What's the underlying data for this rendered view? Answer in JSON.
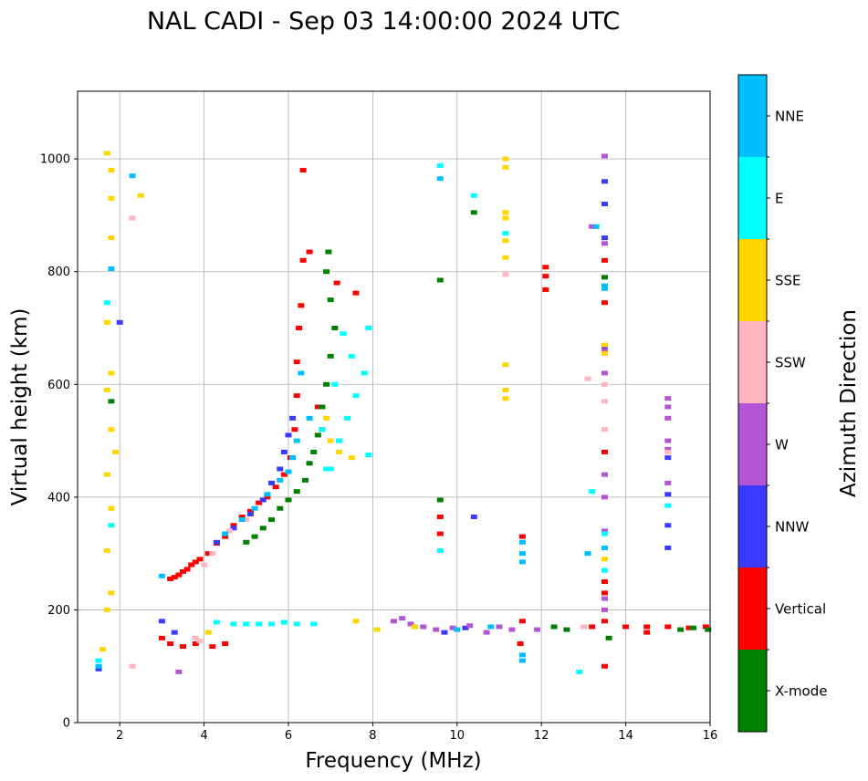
{
  "chart_data": {
    "type": "scatter",
    "title": "NAL CADI - Sep 03 14:00:00 2024 UTC",
    "xlabel": "Frequency (MHz)",
    "ylabel": "Virtual height (km)",
    "xlim": [
      1,
      16
    ],
    "ylim": [
      0,
      1120
    ],
    "xticks": [
      2,
      4,
      6,
      8,
      10,
      12,
      14,
      16
    ],
    "yticks": [
      0,
      200,
      400,
      600,
      800,
      1000
    ],
    "grid": true,
    "colorbar": {
      "label": "Azimuth Direction",
      "categories": [
        {
          "name": "X-mode",
          "color": "#008000"
        },
        {
          "name": "Vertical",
          "color": "#ff0000"
        },
        {
          "name": "NNW",
          "color": "#3a3aff"
        },
        {
          "name": "W",
          "color": "#b455d6"
        },
        {
          "name": "SSW",
          "color": "#ffb6c1"
        },
        {
          "name": "SSE",
          "color": "#ffd700"
        },
        {
          "name": "E",
          "color": "#00ffff"
        },
        {
          "name": "NNE",
          "color": "#00bfff"
        }
      ]
    },
    "series": [
      {
        "name": "Vertical",
        "points": [
          [
            3.2,
            255
          ],
          [
            3.3,
            258
          ],
          [
            3.4,
            262
          ],
          [
            3.5,
            268
          ],
          [
            3.6,
            272
          ],
          [
            3.7,
            280
          ],
          [
            3.8,
            285
          ],
          [
            3.9,
            290
          ],
          [
            4.1,
            300
          ],
          [
            4.3,
            318
          ],
          [
            4.5,
            330
          ],
          [
            4.7,
            350
          ],
          [
            4.9,
            365
          ],
          [
            5.1,
            375
          ],
          [
            5.3,
            390
          ],
          [
            5.5,
            400
          ],
          [
            5.7,
            418
          ],
          [
            5.9,
            440
          ],
          [
            6.05,
            470
          ],
          [
            6.15,
            520
          ],
          [
            6.2,
            580
          ],
          [
            6.2,
            640
          ],
          [
            6.25,
            700
          ],
          [
            6.3,
            740
          ],
          [
            6.35,
            820
          ],
          [
            6.5,
            835
          ],
          [
            6.35,
            980
          ],
          [
            7.15,
            780
          ],
          [
            7.6,
            762
          ],
          [
            3.0,
            150
          ],
          [
            3.2,
            140
          ],
          [
            3.5,
            135
          ],
          [
            3.8,
            140
          ],
          [
            4.2,
            135
          ],
          [
            4.5,
            140
          ],
          [
            11.55,
            330
          ],
          [
            11.55,
            180
          ],
          [
            11.5,
            140
          ],
          [
            12.1,
            808
          ],
          [
            12.1,
            792
          ],
          [
            12.1,
            768
          ],
          [
            13.5,
            820
          ],
          [
            13.5,
            745
          ],
          [
            13.5,
            480
          ],
          [
            13.5,
            250
          ],
          [
            13.5,
            230
          ],
          [
            13.5,
            180
          ],
          [
            13.5,
            100
          ],
          [
            14.0,
            170
          ],
          [
            14.5,
            170
          ],
          [
            15.0,
            170
          ],
          [
            15.5,
            168
          ],
          [
            15.9,
            170
          ],
          [
            13.2,
            170
          ],
          [
            14.5,
            160
          ],
          [
            9.6,
            335
          ],
          [
            9.6,
            365
          ],
          [
            6.8,
            520
          ],
          [
            6.7,
            560
          ]
        ]
      },
      {
        "name": "X-mode",
        "points": [
          [
            5.0,
            320
          ],
          [
            5.2,
            330
          ],
          [
            5.4,
            345
          ],
          [
            5.6,
            360
          ],
          [
            5.8,
            380
          ],
          [
            6.0,
            395
          ],
          [
            6.2,
            410
          ],
          [
            6.4,
            430
          ],
          [
            6.5,
            460
          ],
          [
            6.6,
            480
          ],
          [
            6.7,
            510
          ],
          [
            6.8,
            560
          ],
          [
            6.9,
            600
          ],
          [
            7.0,
            650
          ],
          [
            7.1,
            700
          ],
          [
            7.0,
            750
          ],
          [
            6.9,
            800
          ],
          [
            6.95,
            835
          ],
          [
            9.6,
            395
          ],
          [
            10.4,
            905
          ],
          [
            9.6,
            785
          ],
          [
            1.8,
            570
          ],
          [
            12.3,
            170
          ],
          [
            12.6,
            165
          ],
          [
            13.6,
            150
          ],
          [
            15.3,
            165
          ],
          [
            15.6,
            168
          ],
          [
            15.95,
            165
          ],
          [
            13.5,
            790
          ]
        ]
      },
      {
        "name": "NNW",
        "points": [
          [
            4.3,
            320
          ],
          [
            4.7,
            345
          ],
          [
            5.1,
            370
          ],
          [
            5.4,
            395
          ],
          [
            5.6,
            425
          ],
          [
            5.8,
            450
          ],
          [
            5.9,
            480
          ],
          [
            6.0,
            510
          ],
          [
            6.1,
            540
          ],
          [
            3.0,
            180
          ],
          [
            3.3,
            160
          ],
          [
            10.4,
            365
          ],
          [
            9.7,
            160
          ],
          [
            10.2,
            168
          ],
          [
            15.0,
            405
          ],
          [
            15.0,
            470
          ],
          [
            15.0,
            350
          ],
          [
            15.0,
            310
          ],
          [
            13.5,
            665
          ],
          [
            13.5,
            860
          ],
          [
            13.5,
            960
          ],
          [
            13.5,
            920
          ],
          [
            2.0,
            710
          ],
          [
            1.5,
            95
          ]
        ]
      },
      {
        "name": "W",
        "points": [
          [
            8.5,
            180
          ],
          [
            8.7,
            185
          ],
          [
            8.9,
            175
          ],
          [
            9.2,
            170
          ],
          [
            9.5,
            165
          ],
          [
            9.9,
            168
          ],
          [
            10.3,
            172
          ],
          [
            10.7,
            160
          ],
          [
            11.0,
            170
          ],
          [
            11.3,
            165
          ],
          [
            15.0,
            575
          ],
          [
            15.0,
            560
          ],
          [
            15.0,
            540
          ],
          [
            15.0,
            500
          ],
          [
            15.0,
            485
          ],
          [
            15.0,
            425
          ],
          [
            13.5,
            1005
          ],
          [
            13.5,
            850
          ],
          [
            13.5,
            660
          ],
          [
            13.5,
            620
          ],
          [
            13.5,
            440
          ],
          [
            13.5,
            400
          ],
          [
            13.5,
            340
          ],
          [
            13.5,
            220
          ],
          [
            13.5,
            200
          ],
          [
            3.4,
            90
          ],
          [
            13.2,
            880
          ],
          [
            11.9,
            165
          ]
        ]
      },
      {
        "name": "SSW",
        "points": [
          [
            4.0,
            280
          ],
          [
            4.2,
            300
          ],
          [
            4.6,
            340
          ],
          [
            5.0,
            360
          ],
          [
            3.8,
            150
          ],
          [
            3.9,
            145
          ],
          [
            2.3,
            895
          ],
          [
            11.15,
            795
          ],
          [
            13.5,
            520
          ],
          [
            13.5,
            570
          ],
          [
            13.5,
            600
          ],
          [
            15.0,
            480
          ],
          [
            2.3,
            100
          ],
          [
            13.1,
            610
          ],
          [
            13.0,
            170
          ]
        ]
      },
      {
        "name": "SSE",
        "points": [
          [
            11.15,
            1000
          ],
          [
            11.15,
            985
          ],
          [
            11.15,
            905
          ],
          [
            11.15,
            895
          ],
          [
            11.15,
            855
          ],
          [
            11.15,
            825
          ],
          [
            11.15,
            635
          ],
          [
            11.15,
            590
          ],
          [
            11.15,
            575
          ],
          [
            1.7,
            1010
          ],
          [
            1.8,
            980
          ],
          [
            1.8,
            930
          ],
          [
            1.8,
            860
          ],
          [
            1.7,
            710
          ],
          [
            1.8,
            620
          ],
          [
            1.7,
            590
          ],
          [
            1.8,
            520
          ],
          [
            1.9,
            480
          ],
          [
            1.7,
            440
          ],
          [
            1.8,
            380
          ],
          [
            1.7,
            305
          ],
          [
            1.8,
            230
          ],
          [
            1.7,
            200
          ],
          [
            1.6,
            130
          ],
          [
            2.5,
            935
          ],
          [
            7.2,
            480
          ],
          [
            7.5,
            470
          ],
          [
            8.1,
            165
          ],
          [
            13.5,
            670
          ],
          [
            13.5,
            655
          ],
          [
            13.5,
            290
          ],
          [
            4.1,
            160
          ],
          [
            9.0,
            170
          ],
          [
            7.0,
            500
          ],
          [
            6.9,
            540
          ],
          [
            7.6,
            180
          ]
        ]
      },
      {
        "name": "E",
        "points": [
          [
            7.0,
            450
          ],
          [
            7.2,
            500
          ],
          [
            7.4,
            540
          ],
          [
            7.6,
            580
          ],
          [
            7.8,
            620
          ],
          [
            7.5,
            650
          ],
          [
            7.3,
            690
          ],
          [
            7.1,
            600
          ],
          [
            6.8,
            520
          ],
          [
            6.9,
            450
          ],
          [
            7.9,
            475
          ],
          [
            7.9,
            700
          ],
          [
            5.0,
            175
          ],
          [
            5.3,
            175
          ],
          [
            5.6,
            175
          ],
          [
            5.9,
            178
          ],
          [
            6.2,
            175
          ],
          [
            6.6,
            175
          ],
          [
            4.3,
            178
          ],
          [
            4.7,
            175
          ],
          [
            9.6,
            988
          ],
          [
            10.4,
            935
          ],
          [
            11.15,
            868
          ],
          [
            15.0,
            385
          ],
          [
            13.5,
            335
          ],
          [
            13.5,
            270
          ],
          [
            12.9,
            90
          ],
          [
            9.6,
            305
          ],
          [
            1.7,
            745
          ],
          [
            1.8,
            350
          ],
          [
            1.5,
            110
          ],
          [
            13.2,
            410
          ]
        ]
      },
      {
        "name": "NNE",
        "points": [
          [
            4.5,
            335
          ],
          [
            4.9,
            360
          ],
          [
            5.2,
            380
          ],
          [
            5.5,
            405
          ],
          [
            5.8,
            430
          ],
          [
            6.0,
            445
          ],
          [
            6.1,
            470
          ],
          [
            6.2,
            500
          ],
          [
            6.3,
            620
          ],
          [
            6.5,
            540
          ],
          [
            11.55,
            320
          ],
          [
            11.55,
            300
          ],
          [
            11.55,
            285
          ],
          [
            11.55,
            120
          ],
          [
            11.55,
            110
          ],
          [
            10.8,
            170
          ],
          [
            10.0,
            165
          ],
          [
            13.5,
            775
          ],
          [
            13.5,
            770
          ],
          [
            13.3,
            880
          ],
          [
            9.6,
            965
          ],
          [
            2.3,
            970
          ],
          [
            1.8,
            805
          ],
          [
            1.5,
            100
          ],
          [
            3.0,
            260
          ],
          [
            13.1,
            300
          ],
          [
            13.5,
            310
          ]
        ]
      }
    ]
  }
}
